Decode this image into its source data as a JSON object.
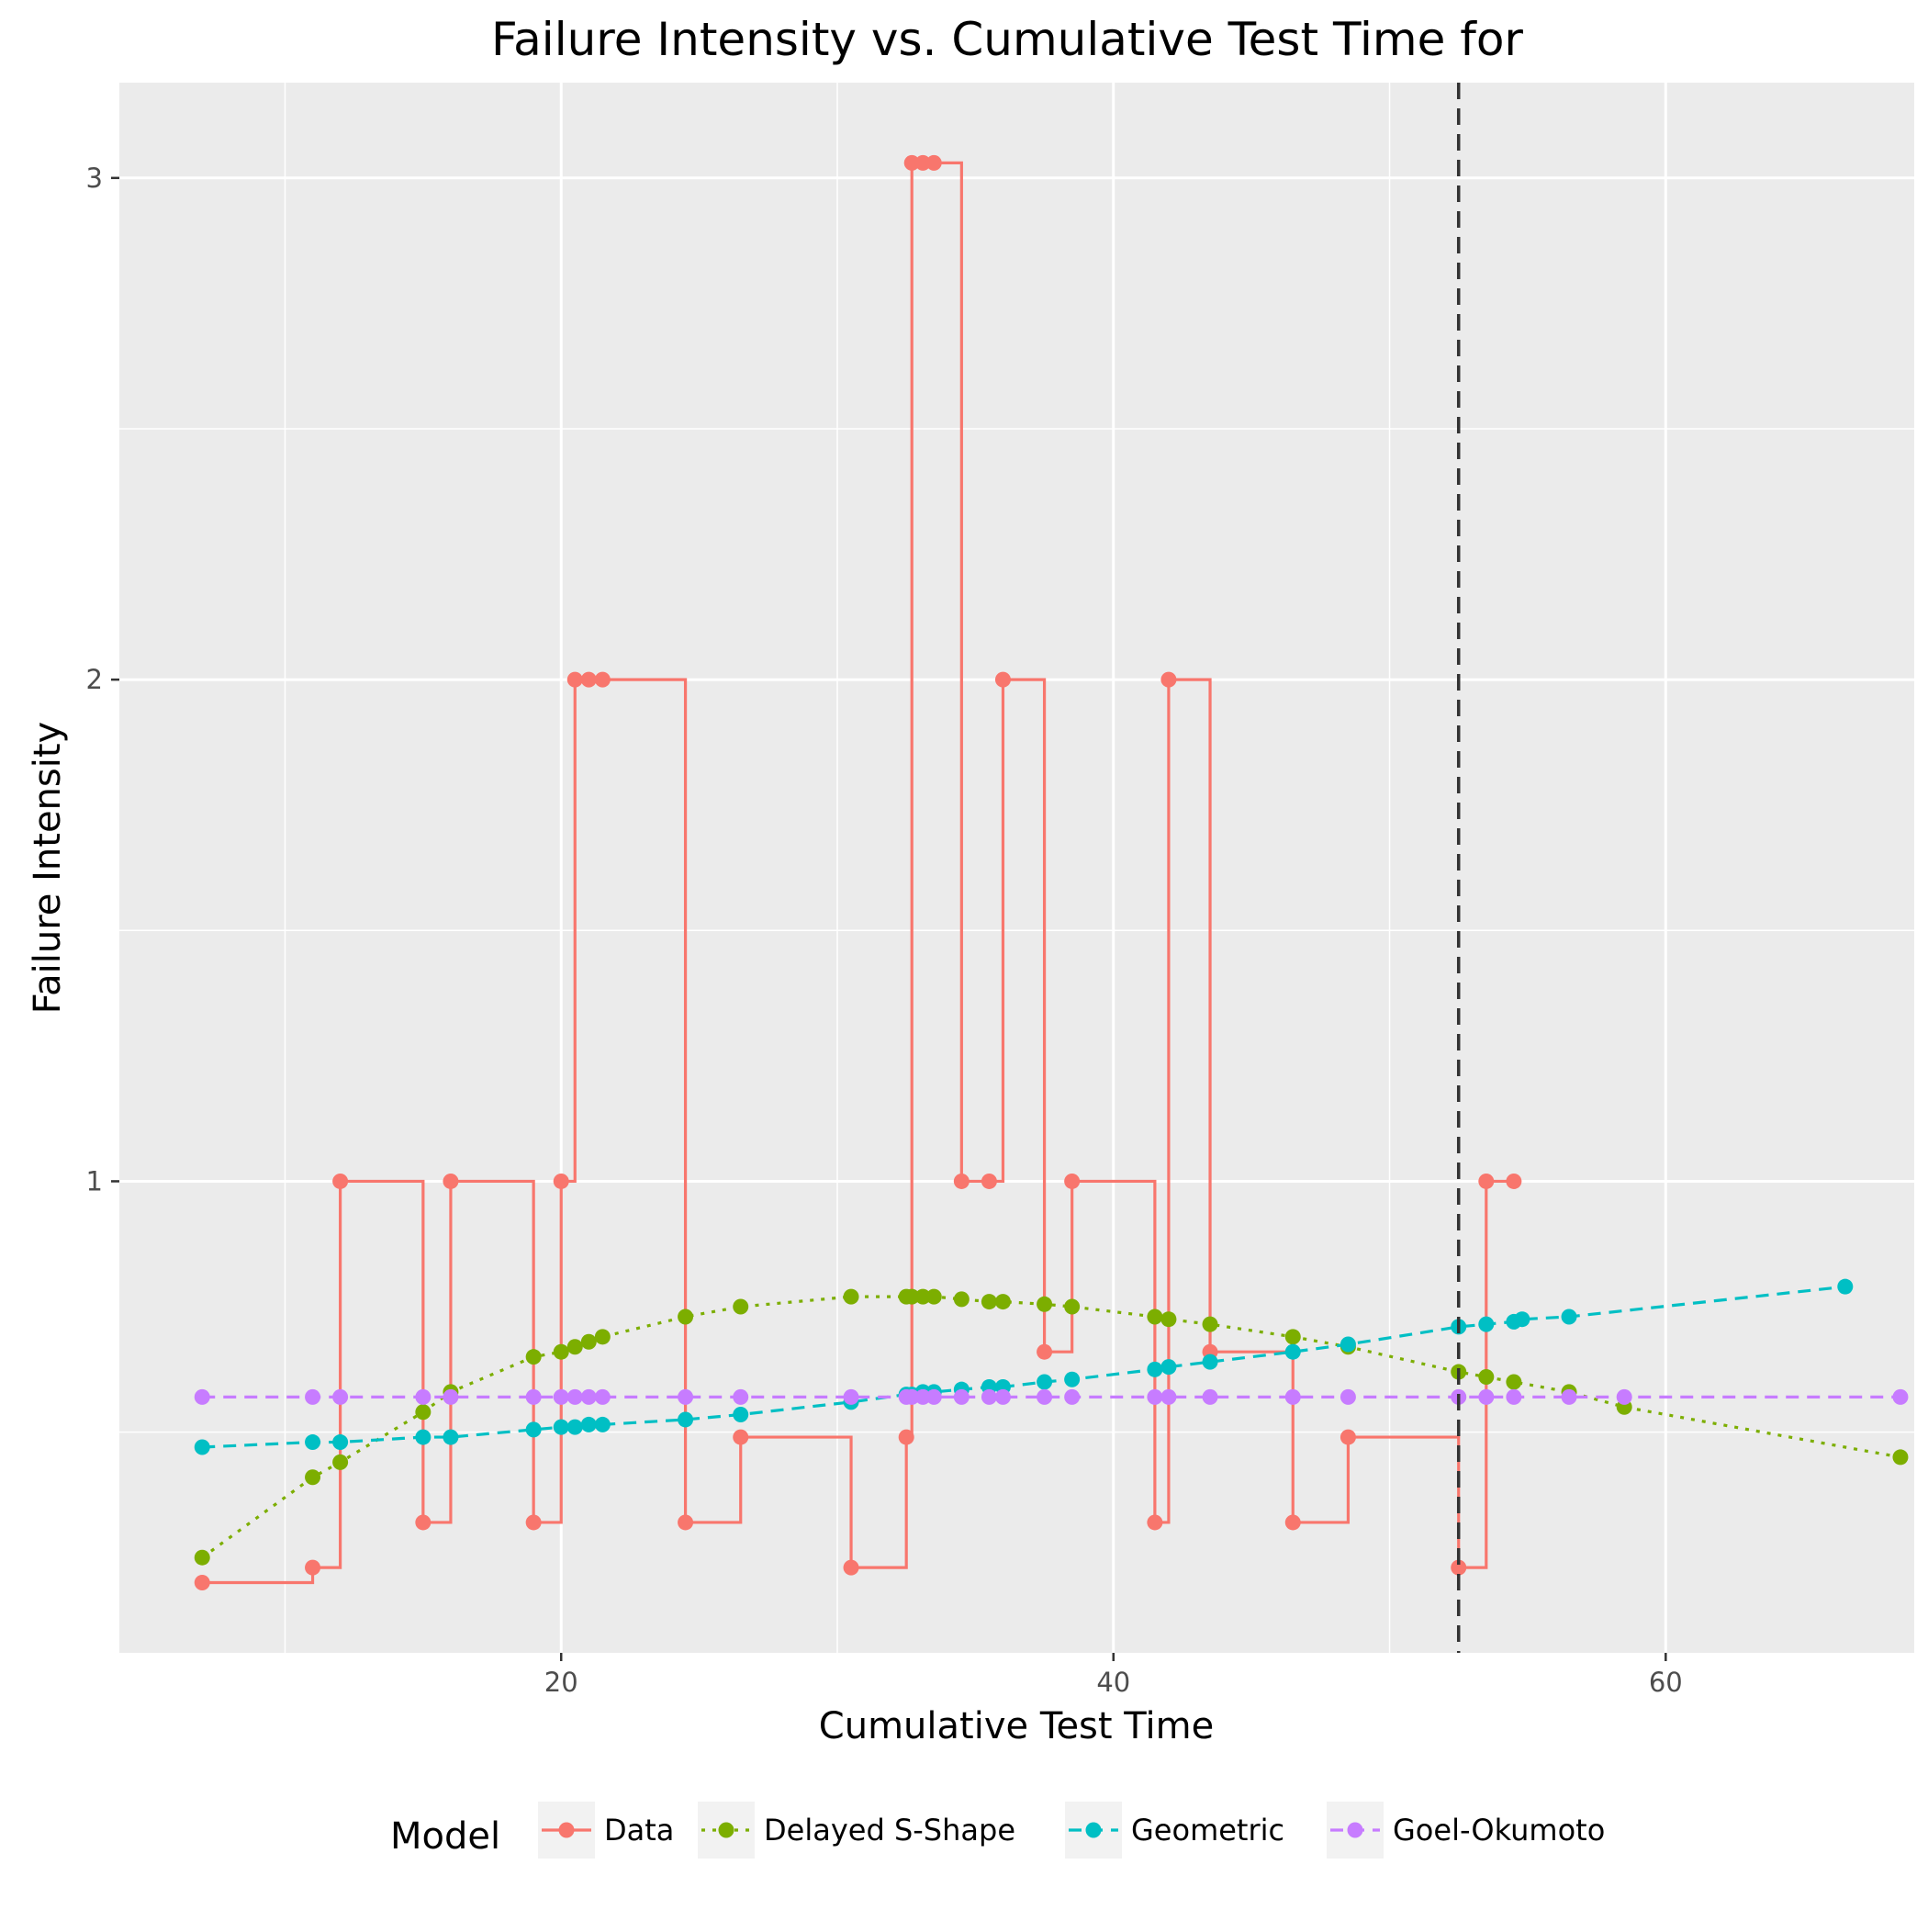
{
  "chart_data": {
    "type": "line",
    "title": "Failure Intensity vs. Cumulative Test Time for",
    "xlabel": "Cumulative Test Time",
    "ylabel": "Failure Intensity",
    "xlim": [
      4,
      69
    ],
    "ylim": [
      0.06,
      3.19
    ],
    "x_ticks": [
      20,
      40,
      60
    ],
    "y_ticks": [
      1,
      2,
      3
    ],
    "vline": {
      "x": 52.5,
      "style": "dashed",
      "color": "#333333"
    },
    "grid": true,
    "legend": {
      "title": "Model",
      "position": "bottom"
    },
    "series": [
      {
        "name": "Data",
        "color": "#F8766D",
        "line": "step",
        "dash": "solid",
        "points": [
          [
            7,
            0.2
          ],
          [
            11,
            0.23
          ],
          [
            12,
            1
          ],
          [
            15,
            0.32
          ],
          [
            16,
            1
          ],
          [
            19,
            0.32
          ],
          [
            20,
            1
          ],
          [
            20.5,
            2
          ],
          [
            21,
            2
          ],
          [
            21.5,
            2
          ],
          [
            24.5,
            0.32
          ],
          [
            26.5,
            0.49
          ],
          [
            30.5,
            0.23
          ],
          [
            32.5,
            0.49
          ],
          [
            32.7,
            3.03
          ],
          [
            33.1,
            3.03
          ],
          [
            33.5,
            3.03
          ],
          [
            34.5,
            1
          ],
          [
            35.5,
            1
          ],
          [
            36,
            2
          ],
          [
            37.5,
            0.66
          ],
          [
            38.5,
            1
          ],
          [
            41.5,
            0.32
          ],
          [
            42,
            2
          ],
          [
            43.5,
            0.66
          ],
          [
            46.5,
            0.32
          ],
          [
            48.5,
            0.49
          ],
          [
            52.5,
            0.23
          ],
          [
            53.5,
            1
          ],
          [
            54.5,
            1
          ]
        ]
      },
      {
        "name": "Delayed S-Shape",
        "color": "#7CAE00",
        "line": "straight",
        "dash": "dotted",
        "points": [
          [
            7,
            0.25
          ],
          [
            11,
            0.41
          ],
          [
            12,
            0.44
          ],
          [
            15,
            0.54
          ],
          [
            16,
            0.58
          ],
          [
            19,
            0.65
          ],
          [
            20,
            0.66
          ],
          [
            20.5,
            0.67
          ],
          [
            21,
            0.68
          ],
          [
            21.5,
            0.69
          ],
          [
            24.5,
            0.73
          ],
          [
            26.5,
            0.75
          ],
          [
            30.5,
            0.77
          ],
          [
            32.5,
            0.77
          ],
          [
            32.7,
            0.77
          ],
          [
            33.1,
            0.77
          ],
          [
            33.5,
            0.77
          ],
          [
            34.5,
            0.765
          ],
          [
            35.5,
            0.76
          ],
          [
            36,
            0.76
          ],
          [
            37.5,
            0.755
          ],
          [
            38.5,
            0.75
          ],
          [
            41.5,
            0.73
          ],
          [
            42,
            0.725
          ],
          [
            43.5,
            0.715
          ],
          [
            46.5,
            0.69
          ],
          [
            48.5,
            0.67
          ],
          [
            52.5,
            0.62
          ],
          [
            53.5,
            0.61
          ],
          [
            54.5,
            0.6
          ],
          [
            56.5,
            0.58
          ],
          [
            58.5,
            0.55
          ],
          [
            68.5,
            0.45
          ]
        ]
      },
      {
        "name": "Geometric",
        "color": "#00BFC4",
        "line": "straight",
        "dash": "dashed",
        "points": [
          [
            7,
            0.47
          ],
          [
            11,
            0.48
          ],
          [
            12,
            0.48
          ],
          [
            15,
            0.49
          ],
          [
            16,
            0.49
          ],
          [
            19,
            0.505
          ],
          [
            20,
            0.51
          ],
          [
            20.5,
            0.51
          ],
          [
            21,
            0.515
          ],
          [
            21.5,
            0.515
          ],
          [
            24.5,
            0.525
          ],
          [
            26.5,
            0.535
          ],
          [
            30.5,
            0.56
          ],
          [
            32.5,
            0.575
          ],
          [
            32.7,
            0.575
          ],
          [
            33.1,
            0.58
          ],
          [
            33.5,
            0.58
          ],
          [
            34.5,
            0.585
          ],
          [
            35.5,
            0.59
          ],
          [
            36,
            0.59
          ],
          [
            37.5,
            0.6
          ],
          [
            38.5,
            0.605
          ],
          [
            41.5,
            0.625
          ],
          [
            42,
            0.63
          ],
          [
            43.5,
            0.64
          ],
          [
            46.5,
            0.66
          ],
          [
            48.5,
            0.675
          ],
          [
            52.5,
            0.71
          ],
          [
            53.5,
            0.715
          ],
          [
            54.5,
            0.72
          ],
          [
            54.8,
            0.725
          ],
          [
            56.5,
            0.73
          ],
          [
            66.5,
            0.79
          ]
        ]
      },
      {
        "name": "Goel-Okumoto",
        "color": "#C77CFF",
        "line": "straight",
        "dash": "dashed",
        "points": [
          [
            7,
            0.57
          ],
          [
            11,
            0.57
          ],
          [
            12,
            0.57
          ],
          [
            15,
            0.57
          ],
          [
            16,
            0.57
          ],
          [
            19,
            0.57
          ],
          [
            20,
            0.57
          ],
          [
            20.5,
            0.57
          ],
          [
            21,
            0.57
          ],
          [
            21.5,
            0.57
          ],
          [
            24.5,
            0.57
          ],
          [
            26.5,
            0.57
          ],
          [
            30.5,
            0.57
          ],
          [
            32.5,
            0.57
          ],
          [
            32.7,
            0.57
          ],
          [
            33.1,
            0.57
          ],
          [
            33.5,
            0.57
          ],
          [
            34.5,
            0.57
          ],
          [
            35.5,
            0.57
          ],
          [
            36,
            0.57
          ],
          [
            37.5,
            0.57
          ],
          [
            38.5,
            0.57
          ],
          [
            41.5,
            0.57
          ],
          [
            42,
            0.57
          ],
          [
            43.5,
            0.57
          ],
          [
            46.5,
            0.57
          ],
          [
            48.5,
            0.57
          ],
          [
            52.5,
            0.57
          ],
          [
            53.5,
            0.57
          ],
          [
            54.5,
            0.57
          ],
          [
            56.5,
            0.57
          ],
          [
            58.5,
            0.57
          ],
          [
            68.5,
            0.57
          ]
        ]
      }
    ],
    "panel_color": "#EBEBEB",
    "grid_color": "#FFFFFF",
    "legend_key_color": "#F2F2F2"
  }
}
